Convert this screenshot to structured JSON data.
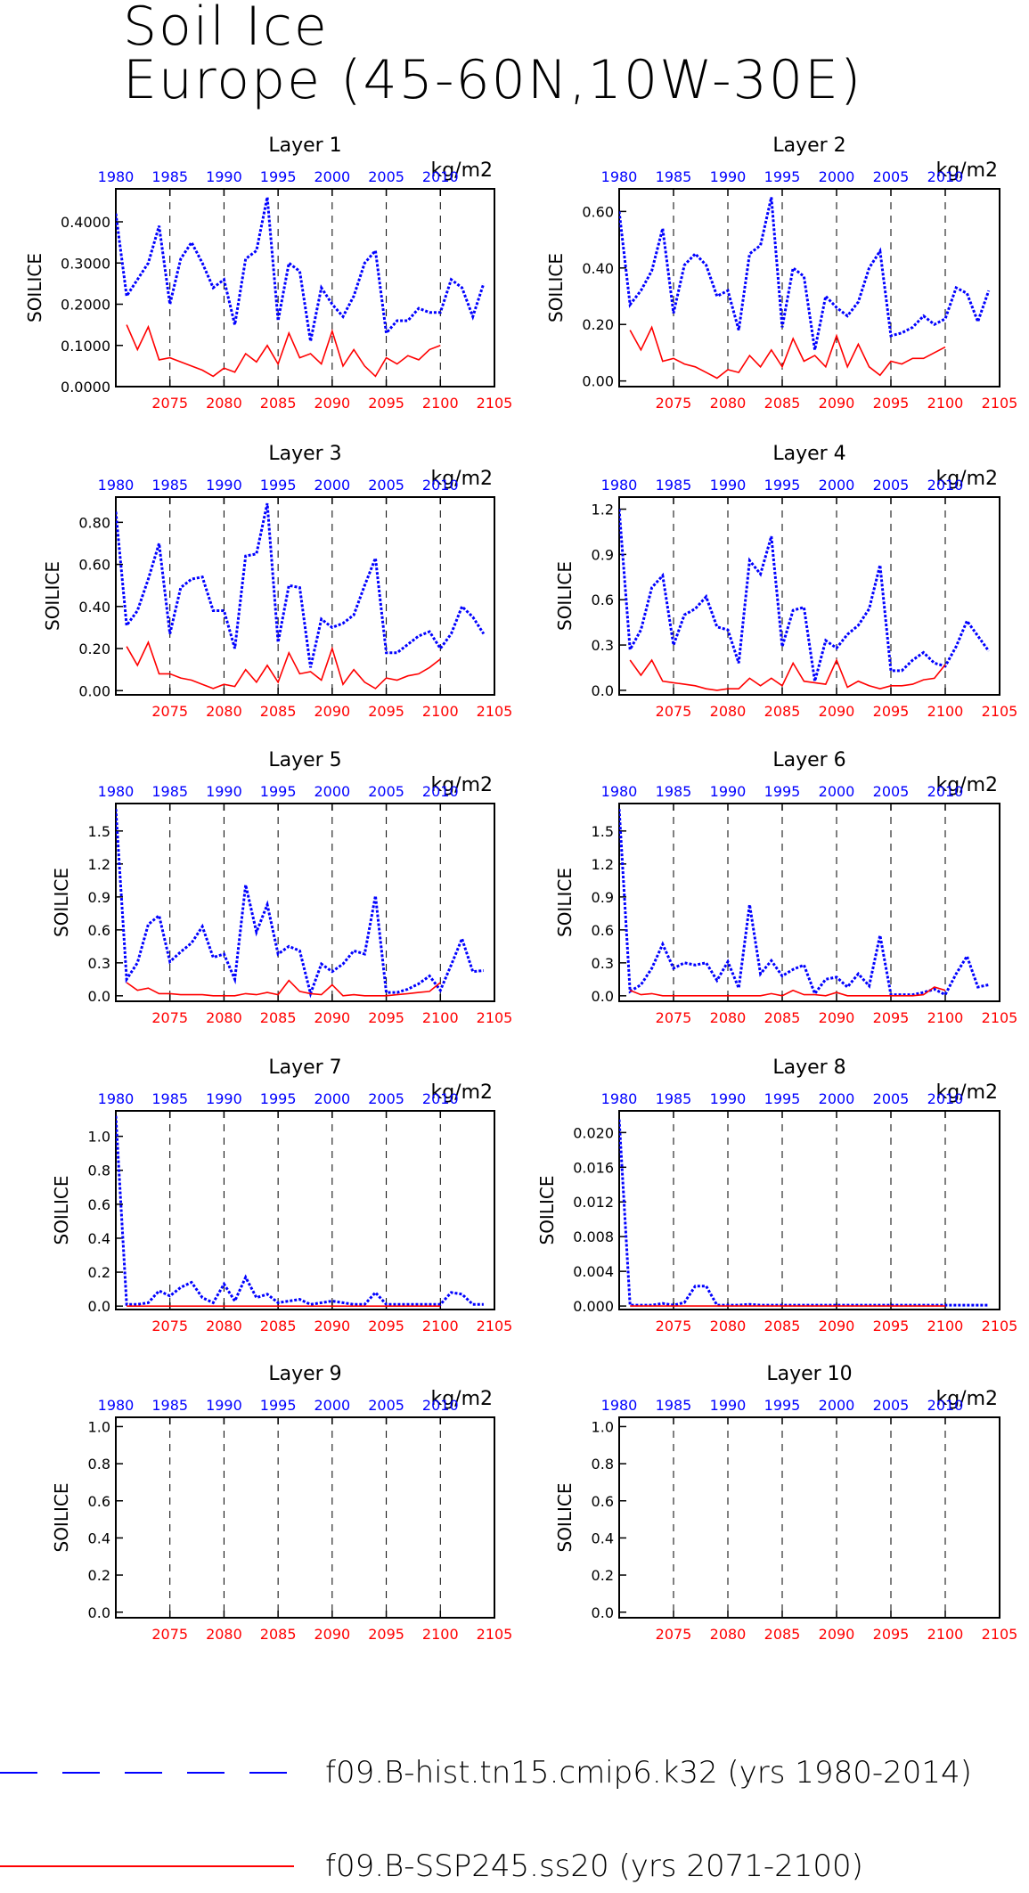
{
  "figure": {
    "title_line1": "Soil Ice",
    "title_line2": "Europe (45-60N,10W-30E)",
    "units": "kg/m2",
    "ylabel": "SOILICE"
  },
  "colors": {
    "hist": "#0000ff",
    "ssp": "#ff0000",
    "axis": "#000000"
  },
  "legend": [
    {
      "label": "f09.B-hist.tn15.cmip6.k32 (yrs 1980-2014)",
      "style": "dashed",
      "color": "#0000ff"
    },
    {
      "label": "f09.B-SSP245.ss20 (yrs 2071-2100)",
      "style": "solid",
      "color": "#ff0000"
    }
  ],
  "top_ticks": [
    "1980",
    "1985",
    "1990",
    "1995",
    "2000",
    "2005",
    "2010"
  ],
  "bottom_ticks": [
    "2075",
    "2080",
    "2085",
    "2090",
    "2095",
    "2100",
    "2105"
  ],
  "chart_data": [
    {
      "type": "line",
      "title": "Layer 1",
      "ylabel": "SOILICE",
      "units": "kg/m2",
      "x_top": [
        1980,
        2014
      ],
      "x_bottom": [
        2071,
        2100
      ],
      "ylim": [
        0,
        0.48
      ],
      "yticks": [
        "0.0000",
        "0.1000",
        "0.2000",
        "0.3000",
        "0.4000"
      ],
      "ytick_values": [
        0,
        0.1,
        0.2,
        0.3,
        0.4
      ],
      "series": [
        {
          "name": "f09.B-hist.tn15.cmip6.k32 (yrs 1980-2014)",
          "values": [
            0.42,
            0.22,
            0.26,
            0.3,
            0.39,
            0.2,
            0.31,
            0.35,
            0.3,
            0.24,
            0.26,
            0.15,
            0.31,
            0.33,
            0.46,
            0.16,
            0.3,
            0.28,
            0.11,
            0.24,
            0.2,
            0.17,
            0.22,
            0.3,
            0.33,
            0.13,
            0.16,
            0.16,
            0.19,
            0.18,
            0.18,
            0.26,
            0.24,
            0.17,
            0.25
          ]
        },
        {
          "name": "f09.B-SSP245.ss20 (yrs 2071-2100)",
          "values": [
            0.15,
            0.09,
            0.145,
            0.065,
            0.07,
            0.06,
            0.05,
            0.04,
            0.025,
            0.045,
            0.035,
            0.08,
            0.06,
            0.1,
            0.055,
            0.13,
            0.07,
            0.08,
            0.055,
            0.135,
            0.05,
            0.09,
            0.05,
            0.025,
            0.07,
            0.055,
            0.075,
            0.065,
            0.09,
            0.1
          ]
        }
      ]
    },
    {
      "type": "line",
      "title": "Layer 2",
      "ylabel": "SOILICE",
      "units": "kg/m2",
      "x_top": [
        1980,
        2014
      ],
      "x_bottom": [
        2071,
        2100
      ],
      "ylim": [
        -0.02,
        0.68
      ],
      "yticks": [
        "0.00",
        "0.20",
        "0.40",
        "0.60"
      ],
      "ytick_values": [
        0,
        0.2,
        0.4,
        0.6
      ],
      "series": [
        {
          "name": "f09.B-hist.tn15.cmip6.k32 (yrs 1980-2014)",
          "values": [
            0.6,
            0.27,
            0.32,
            0.39,
            0.54,
            0.24,
            0.41,
            0.45,
            0.41,
            0.3,
            0.32,
            0.18,
            0.45,
            0.48,
            0.65,
            0.19,
            0.4,
            0.37,
            0.11,
            0.3,
            0.26,
            0.23,
            0.28,
            0.4,
            0.46,
            0.16,
            0.17,
            0.19,
            0.23,
            0.2,
            0.22,
            0.33,
            0.31,
            0.21,
            0.32
          ]
        },
        {
          "name": "f09.B-SSP245.ss20 (yrs 2071-2100)",
          "values": [
            0.18,
            0.11,
            0.19,
            0.07,
            0.08,
            0.06,
            0.05,
            0.03,
            0.01,
            0.04,
            0.03,
            0.09,
            0.05,
            0.11,
            0.05,
            0.15,
            0.07,
            0.09,
            0.05,
            0.16,
            0.05,
            0.13,
            0.05,
            0.02,
            0.07,
            0.06,
            0.08,
            0.08,
            0.1,
            0.12
          ]
        }
      ]
    },
    {
      "type": "line",
      "title": "Layer 3",
      "ylabel": "SOILICE",
      "units": "kg/m2",
      "x_top": [
        1980,
        2014
      ],
      "x_bottom": [
        2071,
        2100
      ],
      "ylim": [
        -0.02,
        0.92
      ],
      "yticks": [
        "0.00",
        "0.20",
        "0.40",
        "0.60",
        "0.80"
      ],
      "ytick_values": [
        0,
        0.2,
        0.4,
        0.6,
        0.8
      ],
      "series": [
        {
          "name": "f09.B-hist.tn15.cmip6.k32 (yrs 1980-2014)",
          "values": [
            0.85,
            0.31,
            0.38,
            0.53,
            0.7,
            0.27,
            0.49,
            0.53,
            0.54,
            0.38,
            0.38,
            0.2,
            0.64,
            0.65,
            0.89,
            0.23,
            0.5,
            0.49,
            0.11,
            0.34,
            0.3,
            0.32,
            0.36,
            0.5,
            0.63,
            0.18,
            0.18,
            0.22,
            0.26,
            0.28,
            0.2,
            0.27,
            0.4,
            0.35,
            0.27
          ]
        },
        {
          "name": "f09.B-SSP245.ss20 (yrs 2071-2100)",
          "values": [
            0.21,
            0.12,
            0.23,
            0.08,
            0.08,
            0.06,
            0.05,
            0.03,
            0.01,
            0.03,
            0.02,
            0.1,
            0.04,
            0.12,
            0.04,
            0.18,
            0.08,
            0.09,
            0.05,
            0.2,
            0.03,
            0.1,
            0.04,
            0.01,
            0.06,
            0.05,
            0.07,
            0.08,
            0.11,
            0.15
          ]
        }
      ]
    },
    {
      "type": "line",
      "title": "Layer 4",
      "ylabel": "SOILICE",
      "units": "kg/m2",
      "x_top": [
        1980,
        2014
      ],
      "x_bottom": [
        2071,
        2100
      ],
      "ylim": [
        -0.03,
        1.28
      ],
      "yticks": [
        "0.0",
        "0.3",
        "0.6",
        "0.9",
        "1.2"
      ],
      "ytick_values": [
        0,
        0.3,
        0.6,
        0.9,
        1.2
      ],
      "series": [
        {
          "name": "f09.B-hist.tn15.cmip6.k32 (yrs 1980-2014)",
          "values": [
            1.2,
            0.27,
            0.4,
            0.68,
            0.76,
            0.3,
            0.5,
            0.54,
            0.62,
            0.42,
            0.4,
            0.18,
            0.86,
            0.77,
            1.02,
            0.29,
            0.53,
            0.55,
            0.06,
            0.33,
            0.28,
            0.37,
            0.43,
            0.54,
            0.83,
            0.13,
            0.13,
            0.2,
            0.25,
            0.18,
            0.16,
            0.29,
            0.46,
            0.36,
            0.26
          ]
        },
        {
          "name": "f09.B-SSP245.ss20 (yrs 2071-2100)",
          "values": [
            0.2,
            0.1,
            0.2,
            0.06,
            0.05,
            0.04,
            0.03,
            0.01,
            0.0,
            0.01,
            0.01,
            0.08,
            0.03,
            0.08,
            0.03,
            0.18,
            0.06,
            0.05,
            0.04,
            0.2,
            0.02,
            0.06,
            0.03,
            0.01,
            0.03,
            0.03,
            0.04,
            0.07,
            0.08,
            0.17
          ]
        }
      ]
    },
    {
      "type": "line",
      "title": "Layer 5",
      "ylabel": "SOILICE",
      "units": "kg/m2",
      "x_top": [
        1980,
        2014
      ],
      "x_bottom": [
        2071,
        2100
      ],
      "ylim": [
        -0.05,
        1.75
      ],
      "yticks": [
        "0.0",
        "0.3",
        "0.6",
        "0.9",
        "1.2",
        "1.5"
      ],
      "ytick_values": [
        0,
        0.3,
        0.6,
        0.9,
        1.2,
        1.5
      ],
      "series": [
        {
          "name": "f09.B-hist.tn15.cmip6.k32 (yrs 1980-2014)",
          "values": [
            1.7,
            0.15,
            0.3,
            0.65,
            0.73,
            0.31,
            0.4,
            0.48,
            0.63,
            0.35,
            0.38,
            0.15,
            1.01,
            0.58,
            0.83,
            0.38,
            0.45,
            0.41,
            0.02,
            0.29,
            0.22,
            0.29,
            0.41,
            0.38,
            0.91,
            0.03,
            0.03,
            0.06,
            0.11,
            0.18,
            0.05,
            0.28,
            0.52,
            0.22,
            0.23
          ]
        },
        {
          "name": "f09.B-SSP245.ss20 (yrs 2071-2100)",
          "values": [
            0.12,
            0.05,
            0.07,
            0.02,
            0.02,
            0.01,
            0.01,
            0.01,
            0.0,
            0.0,
            0.0,
            0.02,
            0.01,
            0.03,
            0.01,
            0.14,
            0.04,
            0.02,
            0.01,
            0.1,
            0.0,
            0.01,
            0.0,
            0.0,
            0.0,
            0.01,
            0.02,
            0.03,
            0.04,
            0.12
          ]
        }
      ]
    },
    {
      "type": "line",
      "title": "Layer 6",
      "ylabel": "SOILICE",
      "units": "kg/m2",
      "x_top": [
        1980,
        2014
      ],
      "x_bottom": [
        2071,
        2100
      ],
      "ylim": [
        -0.05,
        1.75
      ],
      "yticks": [
        "0.0",
        "0.3",
        "0.6",
        "0.9",
        "1.2",
        "1.5"
      ],
      "ytick_values": [
        0,
        0.3,
        0.6,
        0.9,
        1.2,
        1.5
      ],
      "series": [
        {
          "name": "f09.B-hist.tn15.cmip6.k32 (yrs 1980-2014)",
          "values": [
            1.7,
            0.04,
            0.1,
            0.25,
            0.47,
            0.25,
            0.3,
            0.28,
            0.3,
            0.14,
            0.31,
            0.07,
            0.83,
            0.2,
            0.32,
            0.18,
            0.24,
            0.28,
            0.02,
            0.15,
            0.17,
            0.08,
            0.2,
            0.09,
            0.55,
            0.01,
            0.01,
            0.01,
            0.03,
            0.06,
            0.01,
            0.2,
            0.36,
            0.08,
            0.1
          ]
        },
        {
          "name": "f09.B-SSP245.ss20 (yrs 2071-2100)",
          "values": [
            0.05,
            0.01,
            0.02,
            0.0,
            0.0,
            0.0,
            0.0,
            0.0,
            0.0,
            0.0,
            0.0,
            0.0,
            0.0,
            0.02,
            0.0,
            0.05,
            0.01,
            0.01,
            0.0,
            0.03,
            0.0,
            0.0,
            0.0,
            0.0,
            0.0,
            0.0,
            0.0,
            0.01,
            0.08,
            0.05
          ]
        }
      ]
    },
    {
      "type": "line",
      "title": "Layer 7",
      "ylabel": "SOILICE",
      "units": "kg/m2",
      "x_top": [
        1980,
        2014
      ],
      "x_bottom": [
        2071,
        2100
      ],
      "ylim": [
        -0.02,
        1.15
      ],
      "yticks": [
        "0.0",
        "0.2",
        "0.4",
        "0.6",
        "0.8",
        "1.0"
      ],
      "ytick_values": [
        0,
        0.2,
        0.4,
        0.6,
        0.8,
        1.0
      ],
      "series": [
        {
          "name": "f09.B-hist.tn15.cmip6.k32 (yrs 1980-2014)",
          "values": [
            1.12,
            0.01,
            0.01,
            0.02,
            0.09,
            0.06,
            0.11,
            0.14,
            0.05,
            0.02,
            0.13,
            0.03,
            0.17,
            0.05,
            0.07,
            0.02,
            0.03,
            0.04,
            0.01,
            0.02,
            0.03,
            0.02,
            0.01,
            0.01,
            0.08,
            0.01,
            0.01,
            0.01,
            0.01,
            0.01,
            0.01,
            0.08,
            0.07,
            0.01,
            0.01
          ]
        },
        {
          "name": "f09.B-SSP245.ss20 (yrs 2071-2100)",
          "values": [
            0,
            0,
            0,
            0,
            0,
            0,
            0,
            0,
            0,
            0,
            0,
            0,
            0,
            0,
            0,
            0,
            0,
            0,
            0,
            0,
            0,
            0,
            0,
            0,
            0,
            0,
            0,
            0,
            0,
            0
          ]
        }
      ]
    },
    {
      "type": "line",
      "title": "Layer 8",
      "ylabel": "SOILICE",
      "units": "kg/m2",
      "x_top": [
        1980,
        2014
      ],
      "x_bottom": [
        2071,
        2100
      ],
      "ylim": [
        -0.0004,
        0.0225
      ],
      "yticks": [
        "0.000",
        "0.004",
        "0.008",
        "0.012",
        "0.016",
        "0.020"
      ],
      "ytick_values": [
        0,
        0.004,
        0.008,
        0.012,
        0.016,
        0.02
      ],
      "series": [
        {
          "name": "f09.B-hist.tn15.cmip6.k32 (yrs 1980-2014)",
          "values": [
            0.0215,
            0.0001,
            0.0001,
            0.0001,
            0.0003,
            0.0001,
            0.0004,
            0.0023,
            0.0023,
            0.0001,
            0.0001,
            0.0001,
            0.0002,
            0.0001,
            0.0001,
            0.0001,
            0.0001,
            0.0001,
            0.0001,
            0.0001,
            0.0001,
            0.0001,
            0.0001,
            0.0001,
            0.0001,
            0.0001,
            0.0001,
            0.0001,
            0.0001,
            0.0001,
            0.0001,
            0.0001,
            0.0001,
            0.0001,
            0.0001
          ]
        },
        {
          "name": "f09.B-SSP245.ss20 (yrs 2071-2100)",
          "values": [
            0,
            0,
            0,
            0,
            0,
            0,
            0,
            0,
            0,
            0,
            0,
            0,
            0,
            0,
            0,
            0,
            0,
            0,
            0,
            0,
            0,
            0,
            0,
            0,
            0,
            0,
            0,
            0,
            0,
            0
          ]
        }
      ]
    },
    {
      "type": "line",
      "title": "Layer 9",
      "ylabel": "SOILICE",
      "units": "kg/m2",
      "x_top": [
        1980,
        2014
      ],
      "x_bottom": [
        2071,
        2100
      ],
      "ylim": [
        -0.03,
        1.05
      ],
      "yticks": [
        "0.0",
        "0.2",
        "0.4",
        "0.6",
        "0.8",
        "1.0"
      ],
      "ytick_values": [
        0,
        0.2,
        0.4,
        0.6,
        0.8,
        1.0
      ],
      "series": []
    },
    {
      "type": "line",
      "title": "Layer 10",
      "ylabel": "SOILICE",
      "units": "kg/m2",
      "x_top": [
        1980,
        2014
      ],
      "x_bottom": [
        2071,
        2100
      ],
      "ylim": [
        -0.03,
        1.05
      ],
      "yticks": [
        "0.0",
        "0.2",
        "0.4",
        "0.6",
        "0.8",
        "1.0"
      ],
      "ytick_values": [
        0,
        0.2,
        0.4,
        0.6,
        0.8,
        1.0
      ],
      "series": []
    }
  ]
}
